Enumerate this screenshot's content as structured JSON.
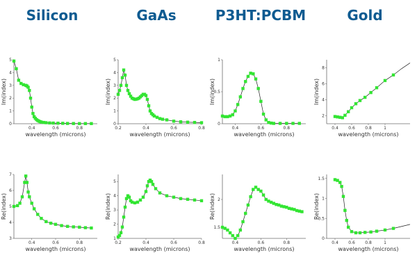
{
  "titles": [
    "Silicon",
    "GaAs",
    "P3HT:PCBM",
    "Gold"
  ],
  "colors": {
    "title": "#0e5b91",
    "series": "#33e533",
    "line": "#1f1f1f",
    "axis": "#6d6d6d"
  },
  "chart_data": [
    {
      "type": "line",
      "material": "Silicon",
      "xlabel": "wavelength (microns)",
      "ylabel": "Im(index)",
      "xlim": [
        0.25,
        0.95
      ],
      "ylim": [
        0,
        5
      ],
      "xticks": [
        0.4,
        0.6,
        0.8
      ],
      "yticks": [
        0,
        1,
        2,
        3,
        4,
        5
      ],
      "x": [
        0.25,
        0.27,
        0.29,
        0.31,
        0.33,
        0.35,
        0.36,
        0.37,
        0.38,
        0.39,
        0.4,
        0.41,
        0.42,
        0.43,
        0.44,
        0.45,
        0.46,
        0.47,
        0.48,
        0.5,
        0.52,
        0.55,
        0.58,
        0.62,
        0.66,
        0.7,
        0.75,
        0.8,
        0.85,
        0.9
      ],
      "y": [
        4.9,
        4.3,
        3.4,
        3.15,
        3.05,
        3.0,
        2.95,
        2.85,
        2.6,
        2.0,
        1.3,
        0.8,
        0.55,
        0.42,
        0.32,
        0.25,
        0.2,
        0.16,
        0.13,
        0.1,
        0.08,
        0.06,
        0.05,
        0.04,
        0.03,
        0.02,
        0.015,
        0.01,
        0.01,
        0.01
      ]
    },
    {
      "type": "line",
      "material": "GaAs",
      "xlabel": "wavelength (microns)",
      "ylabel": "Im(index)",
      "xlim": [
        0.2,
        0.8
      ],
      "ylim": [
        0,
        5
      ],
      "xticks": [
        0.2,
        0.4,
        0.6,
        0.8
      ],
      "yticks": [
        0,
        1,
        2,
        3,
        4,
        5
      ],
      "x": [
        0.2,
        0.21,
        0.22,
        0.23,
        0.24,
        0.25,
        0.26,
        0.27,
        0.28,
        0.29,
        0.3,
        0.31,
        0.32,
        0.33,
        0.34,
        0.35,
        0.36,
        0.37,
        0.38,
        0.39,
        0.4,
        0.41,
        0.42,
        0.43,
        0.44,
        0.45,
        0.46,
        0.48,
        0.5,
        0.52,
        0.55,
        0.6,
        0.65,
        0.7,
        0.75,
        0.8
      ],
      "y": [
        2.3,
        2.6,
        3.0,
        3.6,
        4.2,
        3.8,
        3.0,
        2.6,
        2.35,
        2.15,
        2.0,
        1.95,
        1.9,
        1.92,
        1.95,
        2.0,
        2.1,
        2.2,
        2.3,
        2.3,
        2.2,
        1.9,
        1.4,
        1.0,
        0.8,
        0.7,
        0.6,
        0.5,
        0.4,
        0.35,
        0.3,
        0.2,
        0.15,
        0.12,
        0.1,
        0.08
      ]
    },
    {
      "type": "line",
      "material": "P3HT:PCBM",
      "xlabel": "wavelength (microns)",
      "ylabel": "Im(index)",
      "xlim": [
        0.3,
        0.95
      ],
      "ylim": [
        0,
        1
      ],
      "xticks": [
        0.4,
        0.6,
        0.8
      ],
      "yticks": [
        0,
        0.5,
        1
      ],
      "x": [
        0.3,
        0.32,
        0.34,
        0.36,
        0.38,
        0.4,
        0.42,
        0.44,
        0.46,
        0.48,
        0.5,
        0.52,
        0.54,
        0.56,
        0.58,
        0.6,
        0.62,
        0.64,
        0.66,
        0.68,
        0.7,
        0.75,
        0.8,
        0.85,
        0.9
      ],
      "y": [
        0.12,
        0.11,
        0.11,
        0.12,
        0.14,
        0.2,
        0.3,
        0.42,
        0.55,
        0.66,
        0.74,
        0.79,
        0.78,
        0.7,
        0.55,
        0.35,
        0.15,
        0.06,
        0.02,
        0.01,
        0.005,
        0.005,
        0.005,
        0.005,
        0.005
      ]
    },
    {
      "type": "line",
      "material": "Gold",
      "xlabel": "wavelength (microns)",
      "ylabel": "Im(index)",
      "xlim": [
        0.3,
        1.3
      ],
      "ylim": [
        1,
        9
      ],
      "xticks": [
        0.4,
        0.6,
        0.8,
        1
      ],
      "yticks": [
        2,
        4,
        6,
        8
      ],
      "x": [
        0.4,
        0.43,
        0.46,
        0.49,
        0.52,
        0.56,
        0.6,
        0.65,
        0.7,
        0.76,
        0.83,
        0.9,
        1.0,
        1.1,
        1.2,
        1.3
      ],
      "y": [
        1.9,
        1.85,
        1.8,
        1.75,
        2.05,
        2.5,
        3.0,
        3.5,
        3.9,
        4.3,
        4.9,
        5.5,
        6.4,
        7.1,
        7.9,
        8.6
      ],
      "markers_x": [
        0.4,
        0.43,
        0.46,
        0.49,
        0.52,
        0.56,
        0.6,
        0.65,
        0.7,
        0.76,
        0.83,
        0.9,
        1.0,
        1.1
      ]
    },
    {
      "type": "line",
      "material": "Silicon",
      "xlabel": "wavelength (microns)",
      "ylabel": "Re(index)",
      "xlim": [
        0.25,
        0.95
      ],
      "ylim": [
        3,
        7
      ],
      "xticks": [
        0.4,
        0.6,
        0.8
      ],
      "yticks": [
        3,
        4,
        5,
        6,
        7
      ],
      "x": [
        0.25,
        0.28,
        0.3,
        0.32,
        0.34,
        0.35,
        0.36,
        0.37,
        0.38,
        0.4,
        0.42,
        0.45,
        0.48,
        0.52,
        0.56,
        0.6,
        0.65,
        0.7,
        0.75,
        0.8,
        0.85,
        0.9
      ],
      "y": [
        5.0,
        5.05,
        5.2,
        5.6,
        6.5,
        6.9,
        6.5,
        5.9,
        5.6,
        5.2,
        4.85,
        4.5,
        4.25,
        4.05,
        3.95,
        3.88,
        3.8,
        3.75,
        3.72,
        3.7,
        3.67,
        3.65
      ]
    },
    {
      "type": "line",
      "material": "GaAs",
      "xlabel": "wavelength (microns)",
      "ylabel": "Re(index)",
      "xlim": [
        0.2,
        0.8
      ],
      "ylim": [
        1,
        5.5
      ],
      "xticks": [
        0.2,
        0.4,
        0.6,
        0.8
      ],
      "yticks": [
        1,
        2,
        3,
        4,
        5
      ],
      "x": [
        0.2,
        0.21,
        0.22,
        0.23,
        0.24,
        0.25,
        0.26,
        0.27,
        0.28,
        0.29,
        0.3,
        0.32,
        0.34,
        0.36,
        0.38,
        0.4,
        0.41,
        0.42,
        0.43,
        0.44,
        0.45,
        0.47,
        0.5,
        0.55,
        0.6,
        0.65,
        0.7,
        0.75,
        0.8
      ],
      "y": [
        1.1,
        1.2,
        1.4,
        1.8,
        2.5,
        3.2,
        3.8,
        4.0,
        3.9,
        3.65,
        3.55,
        3.5,
        3.55,
        3.7,
        3.9,
        4.3,
        4.7,
        5.0,
        5.1,
        5.0,
        4.8,
        4.5,
        4.2,
        4.0,
        3.9,
        3.8,
        3.75,
        3.7,
        3.65
      ]
    },
    {
      "type": "line",
      "material": "P3HT:PCBM",
      "xlabel": "wavelength (microns)",
      "ylabel": "Re(index)",
      "xlim": [
        0.3,
        0.95
      ],
      "ylim": [
        1.3,
        2.45
      ],
      "xticks": [
        0.4,
        0.6,
        0.8
      ],
      "yticks": [
        1.5,
        2
      ],
      "x": [
        0.3,
        0.32,
        0.34,
        0.36,
        0.38,
        0.4,
        0.42,
        0.44,
        0.46,
        0.48,
        0.5,
        0.52,
        0.54,
        0.56,
        0.58,
        0.6,
        0.62,
        0.64,
        0.66,
        0.68,
        0.7,
        0.72,
        0.74,
        0.76,
        0.78,
        0.8,
        0.82,
        0.84,
        0.86,
        0.88,
        0.9,
        0.92
      ],
      "y": [
        1.5,
        1.48,
        1.45,
        1.4,
        1.35,
        1.3,
        1.35,
        1.45,
        1.6,
        1.75,
        1.9,
        2.05,
        2.18,
        2.22,
        2.18,
        2.15,
        2.08,
        2.0,
        1.97,
        1.95,
        1.93,
        1.91,
        1.9,
        1.88,
        1.87,
        1.86,
        1.84,
        1.83,
        1.82,
        1.8,
        1.79,
        1.78
      ]
    },
    {
      "type": "line",
      "material": "Gold",
      "xlabel": "wavelength (microns)",
      "ylabel": "Re(index)",
      "xlim": [
        0.3,
        1.3
      ],
      "ylim": [
        0,
        1.6
      ],
      "xticks": [
        0.4,
        0.6,
        0.8,
        1
      ],
      "yticks": [
        0,
        0.5,
        1,
        1.5
      ],
      "x": [
        0.4,
        0.43,
        0.46,
        0.48,
        0.5,
        0.52,
        0.54,
        0.56,
        0.6,
        0.65,
        0.7,
        0.76,
        0.83,
        0.9,
        1.0,
        1.1,
        1.2,
        1.3
      ],
      "y": [
        1.47,
        1.45,
        1.4,
        1.3,
        1.05,
        0.7,
        0.45,
        0.28,
        0.17,
        0.14,
        0.14,
        0.15,
        0.16,
        0.18,
        0.21,
        0.25,
        0.3,
        0.35
      ],
      "markers_x": [
        0.4,
        0.43,
        0.46,
        0.48,
        0.5,
        0.52,
        0.54,
        0.56,
        0.6,
        0.65,
        0.7,
        0.76,
        0.83,
        0.9,
        1.0,
        1.1
      ]
    }
  ]
}
